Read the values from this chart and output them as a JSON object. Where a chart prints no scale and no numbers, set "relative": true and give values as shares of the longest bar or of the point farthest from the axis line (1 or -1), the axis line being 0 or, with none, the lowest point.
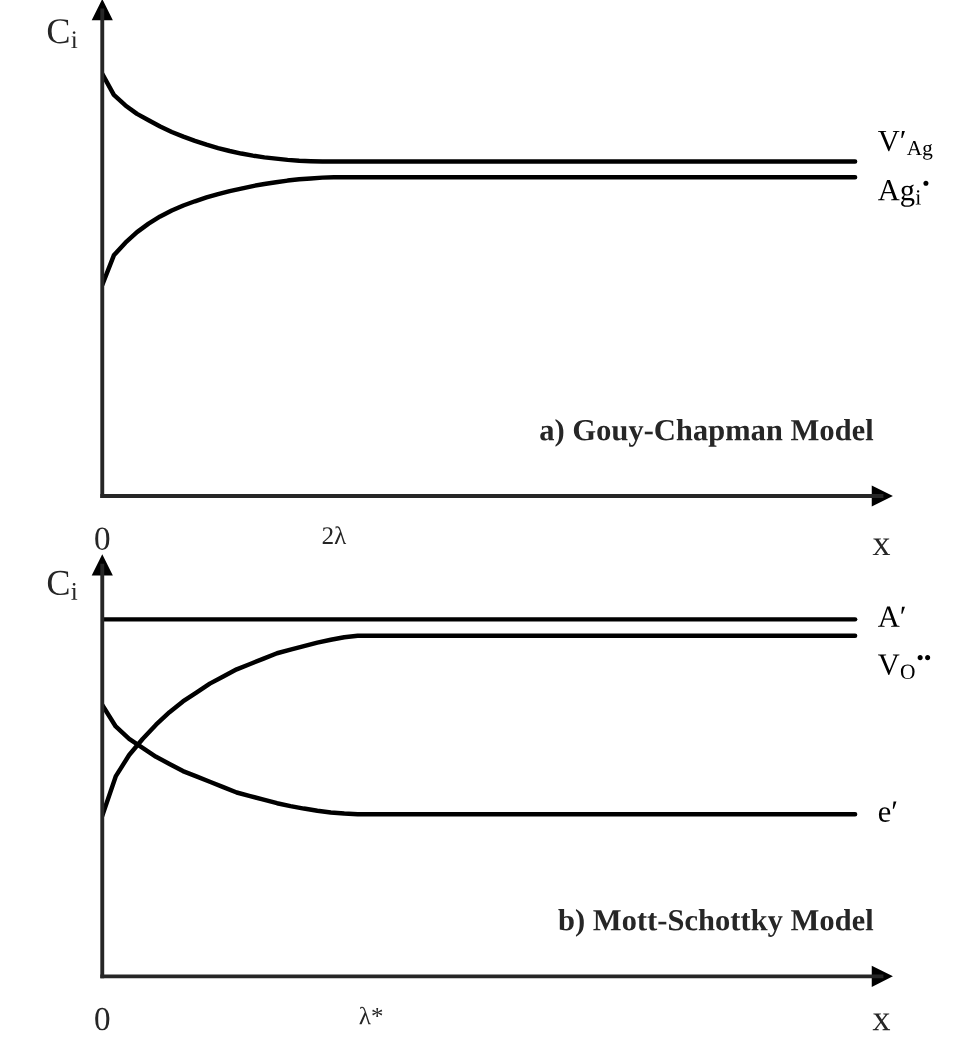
{
  "chart_data": [
    {
      "type": "line",
      "title": "a) Gouy-Chapman Model",
      "ylabel": "C$_{i}$",
      "xlabel": "x",
      "relative": true,
      "legend": false,
      "grid": false,
      "marker": "none",
      "line_style": "solid",
      "categories": [
        "0",
        null,
        null,
        null,
        null,
        null,
        null,
        null,
        null,
        null,
        null,
        null,
        null,
        null,
        null,
        null,
        null,
        null,
        null,
        null,
        "2λ",
        null,
        null,
        null,
        null,
        null,
        null,
        null,
        null,
        null,
        null,
        null,
        null,
        null,
        null,
        null,
        null,
        null,
        null,
        null,
        null,
        null,
        null,
        null,
        null,
        null,
        null,
        null,
        null,
        null,
        null,
        null,
        null,
        null,
        null,
        null,
        null,
        null,
        null,
        null,
        null,
        null,
        null,
        null,
        null,
        null
      ],
      "series": [
        {
          "name": "V′$_{Ag}$",
          "color": "#000000",
          "values": [
            1.0,
            0.95,
            0.925,
            0.905,
            0.89,
            0.875,
            0.862,
            0.851,
            0.841,
            0.832,
            0.824,
            0.817,
            0.811,
            0.806,
            0.802,
            0.799,
            0.796,
            0.794,
            0.793,
            0.792,
            0.792,
            0.792,
            0.792,
            0.792,
            0.792,
            0.792,
            0.792,
            0.792,
            0.792,
            0.792,
            0.792,
            0.792,
            0.792,
            0.792,
            0.792,
            0.792,
            0.792,
            0.792,
            0.792,
            0.792,
            0.792,
            0.792,
            0.792,
            0.792,
            0.792,
            0.792,
            0.792,
            0.792,
            0.792,
            0.792,
            0.792,
            0.792,
            0.792,
            0.792,
            0.792,
            0.792,
            0.792,
            0.792,
            0.792,
            0.792,
            0.792,
            0.792,
            0.792,
            0.792,
            0.792,
            0.792
          ]
        },
        {
          "name": "Ag$_{i}$$^{•}$",
          "color": "#000000",
          "values": [
            0.5,
            0.57,
            0.6,
            0.625,
            0.645,
            0.662,
            0.676,
            0.688,
            0.698,
            0.707,
            0.715,
            0.722,
            0.728,
            0.734,
            0.739,
            0.743,
            0.747,
            0.75,
            0.752,
            0.754,
            0.755,
            0.755,
            0.755,
            0.755,
            0.755,
            0.755,
            0.755,
            0.755,
            0.755,
            0.755,
            0.755,
            0.755,
            0.755,
            0.755,
            0.755,
            0.755,
            0.755,
            0.755,
            0.755,
            0.755,
            0.755,
            0.755,
            0.755,
            0.755,
            0.755,
            0.755,
            0.755,
            0.755,
            0.755,
            0.755,
            0.755,
            0.755,
            0.755,
            0.755,
            0.755,
            0.755,
            0.755,
            0.755,
            0.755,
            0.755,
            0.755,
            0.755,
            0.755,
            0.755,
            0.755,
            0.755
          ]
        }
      ]
    },
    {
      "type": "line",
      "title": "b) Mott-Schottky Model",
      "ylabel": "C$_{i}$",
      "xlabel": "x",
      "relative": true,
      "legend": false,
      "grid": false,
      "marker": "none",
      "line_style": "solid",
      "categories": [
        "0",
        null,
        null,
        null,
        null,
        null,
        null,
        null,
        null,
        null,
        null,
        null,
        null,
        null,
        null,
        null,
        null,
        null,
        null,
        null,
        "λ*",
        null,
        null,
        null,
        null,
        null,
        null,
        null,
        null,
        null,
        null,
        null,
        null,
        null,
        null,
        null,
        null,
        null,
        null,
        null,
        null,
        null,
        null,
        null,
        null,
        null,
        null,
        null,
        null,
        null,
        null,
        null,
        null,
        null,
        null,
        null,
        null
      ],
      "series": [
        {
          "name": "A′",
          "color": "#000000",
          "values": [
            1.0,
            1.0,
            1.0,
            1.0,
            1.0,
            1.0,
            1.0,
            1.0,
            1.0,
            1.0,
            1.0,
            1.0,
            1.0,
            1.0,
            1.0,
            1.0,
            1.0,
            1.0,
            1.0,
            1.0,
            1.0,
            1.0,
            1.0,
            1.0,
            1.0,
            1.0,
            1.0,
            1.0,
            1.0,
            1.0,
            1.0,
            1.0,
            1.0,
            1.0,
            1.0,
            1.0,
            1.0,
            1.0,
            1.0,
            1.0,
            1.0,
            1.0,
            1.0,
            1.0,
            1.0,
            1.0,
            1.0,
            1.0,
            1.0,
            1.0,
            1.0,
            1.0,
            1.0,
            1.0,
            1.0,
            1.0,
            1.0
          ]
        },
        {
          "name": "V$_{O}$$^{••}$",
          "color": "#000000",
          "values": [
            0.45,
            0.56,
            0.62,
            0.665,
            0.705,
            0.74,
            0.77,
            0.795,
            0.82,
            0.84,
            0.86,
            0.875,
            0.89,
            0.905,
            0.915,
            0.925,
            0.935,
            0.943,
            0.95,
            0.954,
            0.954,
            0.954,
            0.954,
            0.954,
            0.954,
            0.954,
            0.954,
            0.954,
            0.954,
            0.954,
            0.954,
            0.954,
            0.954,
            0.954,
            0.954,
            0.954,
            0.954,
            0.954,
            0.954,
            0.954,
            0.954,
            0.954,
            0.954,
            0.954,
            0.954,
            0.954,
            0.954,
            0.954,
            0.954,
            0.954,
            0.954,
            0.954,
            0.954,
            0.954,
            0.954,
            0.954,
            0.954
          ]
        },
        {
          "name": "e′",
          "color": "#000000",
          "values": [
            0.76,
            0.7,
            0.665,
            0.64,
            0.615,
            0.595,
            0.575,
            0.56,
            0.545,
            0.53,
            0.515,
            0.505,
            0.495,
            0.485,
            0.477,
            0.47,
            0.464,
            0.459,
            0.456,
            0.454,
            0.454,
            0.454,
            0.454,
            0.454,
            0.454,
            0.454,
            0.454,
            0.454,
            0.454,
            0.454,
            0.454,
            0.454,
            0.454,
            0.454,
            0.454,
            0.454,
            0.454,
            0.454,
            0.454,
            0.454,
            0.454,
            0.454,
            0.454,
            0.454,
            0.454,
            0.454,
            0.454,
            0.454,
            0.454,
            0.454,
            0.454,
            0.454,
            0.454,
            0.454,
            0.454,
            0.454,
            0.454
          ]
        }
      ]
    }
  ]
}
